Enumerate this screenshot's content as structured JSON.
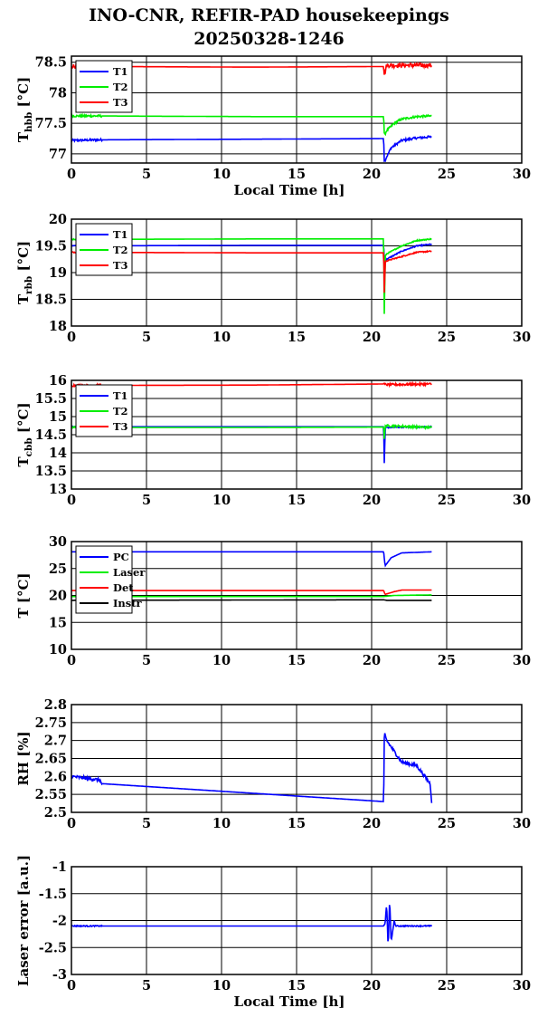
{
  "title_line1": "INO-CNR, REFIR-PAD housekeepings",
  "title_line2": "20250328-1246",
  "chart_data": [
    {
      "type": "line",
      "ylabel_main": "T",
      "ylabel_sub": "hbb",
      "ylabel_unit": " [°C]",
      "xlabel": "Local Time [h]",
      "xlim": [
        0,
        30
      ],
      "ylim": [
        76.85,
        78.6
      ],
      "xticks": [
        0,
        5,
        10,
        15,
        20,
        25,
        30
      ],
      "yticks": [
        77,
        77.5,
        78,
        78.5
      ],
      "ytick_labels": [
        "77",
        "77.5",
        "78",
        "78.5"
      ],
      "grid": true,
      "legend_position": "top-left",
      "series": [
        {
          "name": "T1",
          "color": "#0000ff",
          "noise": 0.02,
          "points": [
            [
              0,
              77.22
            ],
            [
              2,
              77.23
            ],
            [
              12,
              77.24
            ],
            [
              20.8,
              77.25
            ],
            [
              20.85,
              76.86
            ],
            [
              21.0,
              76.95
            ],
            [
              21.3,
              77.1
            ],
            [
              22,
              77.22
            ],
            [
              23,
              77.26
            ],
            [
              24,
              77.28
            ]
          ]
        },
        {
          "name": "T2",
          "color": "#00ee00",
          "noise": 0.02,
          "points": [
            [
              0,
              77.62
            ],
            [
              2,
              77.62
            ],
            [
              12,
              77.61
            ],
            [
              20.8,
              77.61
            ],
            [
              20.85,
              77.3
            ],
            [
              21.0,
              77.38
            ],
            [
              21.5,
              77.5
            ],
            [
              22,
              77.57
            ],
            [
              23,
              77.61
            ],
            [
              24,
              77.62
            ]
          ]
        },
        {
          "name": "T3",
          "color": "#ff0000",
          "noise": 0.04,
          "points": [
            [
              0,
              78.44
            ],
            [
              2,
              78.43
            ],
            [
              12,
              78.42
            ],
            [
              20.8,
              78.43
            ],
            [
              20.85,
              78.3
            ],
            [
              21.0,
              78.45
            ],
            [
              24,
              78.45
            ]
          ]
        }
      ]
    },
    {
      "type": "line",
      "ylabel_main": "T",
      "ylabel_sub": "rbb",
      "ylabel_unit": " [°C]",
      "xlabel": "",
      "xlim": [
        0,
        30
      ],
      "ylim": [
        18,
        20
      ],
      "xticks": [
        0,
        5,
        10,
        15,
        20,
        25,
        30
      ],
      "yticks": [
        18,
        18.5,
        19,
        19.5,
        20
      ],
      "ytick_labels": [
        "18",
        "18.5",
        "19",
        "19.5",
        "20"
      ],
      "grid": true,
      "legend_position": "top-left",
      "series": [
        {
          "name": "T1",
          "color": "#0000ff",
          "noise": 0.01,
          "points": [
            [
              0,
              19.5
            ],
            [
              12,
              19.51
            ],
            [
              20.8,
              19.51
            ],
            [
              20.85,
              19.2
            ],
            [
              21,
              19.25
            ],
            [
              22,
              19.4
            ],
            [
              23,
              19.5
            ],
            [
              24,
              19.53
            ]
          ]
        },
        {
          "name": "T2",
          "color": "#00ee00",
          "noise": 0.01,
          "points": [
            [
              0,
              19.62
            ],
            [
              12,
              19.63
            ],
            [
              20.8,
              19.63
            ],
            [
              20.85,
              18.1
            ],
            [
              20.9,
              19.3
            ],
            [
              21,
              19.35
            ],
            [
              22,
              19.5
            ],
            [
              23,
              19.6
            ],
            [
              24,
              19.63
            ]
          ]
        },
        {
          "name": "T3",
          "color": "#ff0000",
          "noise": 0.01,
          "points": [
            [
              0,
              19.38
            ],
            [
              12,
              19.37
            ],
            [
              20.8,
              19.37
            ],
            [
              20.85,
              18.55
            ],
            [
              20.9,
              19.2
            ],
            [
              21,
              19.22
            ],
            [
              22,
              19.3
            ],
            [
              23,
              19.38
            ],
            [
              24,
              19.4
            ]
          ]
        }
      ]
    },
    {
      "type": "line",
      "ylabel_main": "T",
      "ylabel_sub": "cbb",
      "ylabel_unit": " [°C]",
      "xlabel": "",
      "xlim": [
        0,
        30
      ],
      "ylim": [
        13,
        16
      ],
      "xticks": [
        0,
        5,
        10,
        15,
        20,
        25,
        30
      ],
      "yticks": [
        13,
        13.5,
        14,
        14.5,
        15,
        15.5,
        16
      ],
      "ytick_labels": [
        "13",
        "13.5",
        "14",
        "14.5",
        "15",
        "15.5",
        "16"
      ],
      "grid": true,
      "legend_position": "top-left",
      "series": [
        {
          "name": "T1",
          "color": "#0000ff",
          "noise": 0.01,
          "points": [
            [
              0,
              14.72
            ],
            [
              12,
              14.72
            ],
            [
              20.8,
              14.72
            ],
            [
              20.85,
              13.62
            ],
            [
              20.9,
              14.7
            ],
            [
              24,
              14.72
            ]
          ]
        },
        {
          "name": "T2",
          "color": "#00ee00",
          "noise": 0.02,
          "points": [
            [
              0,
              14.7
            ],
            [
              6,
              14.7
            ],
            [
              12,
              14.7
            ],
            [
              20.8,
              14.71
            ],
            [
              20.85,
              14.35
            ],
            [
              20.9,
              14.75
            ],
            [
              24,
              14.7
            ]
          ]
        },
        {
          "name": "T3",
          "color": "#ff0000",
          "noise": 0.02,
          "points": [
            [
              0,
              15.86
            ],
            [
              12,
              15.87
            ],
            [
              20.8,
              15.9
            ],
            [
              21,
              15.88
            ],
            [
              24,
              15.9
            ]
          ]
        }
      ]
    },
    {
      "type": "line",
      "ylabel_main": "T [°C]",
      "ylabel_sub": "",
      "ylabel_unit": "",
      "xlabel": "",
      "xlim": [
        0,
        30
      ],
      "ylim": [
        10,
        30
      ],
      "xticks": [
        0,
        5,
        10,
        15,
        20,
        25,
        30
      ],
      "yticks": [
        10,
        15,
        20,
        25,
        30
      ],
      "ytick_labels": [
        "10",
        "15",
        "20",
        "25",
        "30"
      ],
      "grid": true,
      "legend_position": "top-left",
      "series": [
        {
          "name": "PC",
          "color": "#0000ff",
          "noise": 0,
          "points": [
            [
              0,
              28.1
            ],
            [
              20.8,
              28.1
            ],
            [
              20.9,
              25.5
            ],
            [
              21.3,
              27
            ],
            [
              22,
              27.9
            ],
            [
              24,
              28.1
            ]
          ]
        },
        {
          "name": "Laser",
          "color": "#00ee00",
          "noise": 0,
          "points": [
            [
              0,
              19.8
            ],
            [
              20.8,
              19.8
            ],
            [
              21.5,
              20
            ],
            [
              24,
              20.1
            ]
          ]
        },
        {
          "name": "Det",
          "color": "#ff0000",
          "noise": 0,
          "points": [
            [
              0,
              20.9
            ],
            [
              20.8,
              20.9
            ],
            [
              20.9,
              20.2
            ],
            [
              21.5,
              20.7
            ],
            [
              22,
              21
            ],
            [
              24,
              21
            ]
          ]
        },
        {
          "name": "Instr",
          "color": "#000000",
          "noise": 0,
          "points": [
            [
              0,
              19.1
            ],
            [
              20.8,
              19.2
            ],
            [
              21,
              19.1
            ],
            [
              24,
              19.1
            ]
          ]
        }
      ]
    },
    {
      "type": "line",
      "ylabel_main": "RH [%]",
      "ylabel_sub": "",
      "ylabel_unit": "",
      "xlabel": "",
      "xlim": [
        0,
        30
      ],
      "ylim": [
        2.5,
        2.8
      ],
      "xticks": [
        0,
        5,
        10,
        15,
        20,
        25,
        30
      ],
      "yticks": [
        2.5,
        2.55,
        2.6,
        2.65,
        2.7,
        2.75,
        2.8
      ],
      "ytick_labels": [
        "2.5",
        "2.55",
        "2.6",
        "2.65",
        "2.7",
        "2.75",
        "2.8"
      ],
      "grid": true,
      "legend_position": "none",
      "series": [
        {
          "name": "",
          "color": "#0000ff",
          "noise": 0.03,
          "points": [
            [
              0,
              2.6
            ],
            [
              1.9,
              2.59
            ],
            [
              2,
              2.58
            ],
            [
              20.8,
              2.53
            ],
            [
              20.85,
              2.72
            ],
            [
              21,
              2.7
            ],
            [
              22,
              2.64
            ],
            [
              23,
              2.63
            ],
            [
              23.9,
              2.58
            ],
            [
              24,
              2.53
            ]
          ]
        }
      ]
    },
    {
      "type": "line",
      "ylabel_main": "Laser error [a.u.]",
      "ylabel_sub": "",
      "ylabel_unit": "",
      "xlabel": "Local Time [h]",
      "xlim": [
        0,
        30
      ],
      "ylim": [
        -3,
        -1
      ],
      "xticks": [
        0,
        5,
        10,
        15,
        20,
        25,
        30
      ],
      "yticks": [
        -3,
        -2.5,
        -2,
        -1.5,
        -1
      ],
      "ytick_labels": [
        "-3",
        "-2.5",
        "-2",
        "-1.5",
        "-1"
      ],
      "grid": true,
      "legend_position": "none",
      "series": [
        {
          "name": "",
          "color": "#0000ff",
          "noise": 0.01,
          "points": [
            [
              0,
              -2.1
            ],
            [
              2,
              -2.1
            ],
            [
              20.8,
              -2.1
            ],
            [
              20.9,
              -2.05
            ],
            [
              21.0,
              -1.7
            ],
            [
              21.1,
              -2.5
            ],
            [
              21.2,
              -1.6
            ],
            [
              21.3,
              -2.4
            ],
            [
              21.5,
              -2.0
            ],
            [
              21.6,
              -2.1
            ],
            [
              24,
              -2.1
            ]
          ]
        }
      ]
    }
  ]
}
